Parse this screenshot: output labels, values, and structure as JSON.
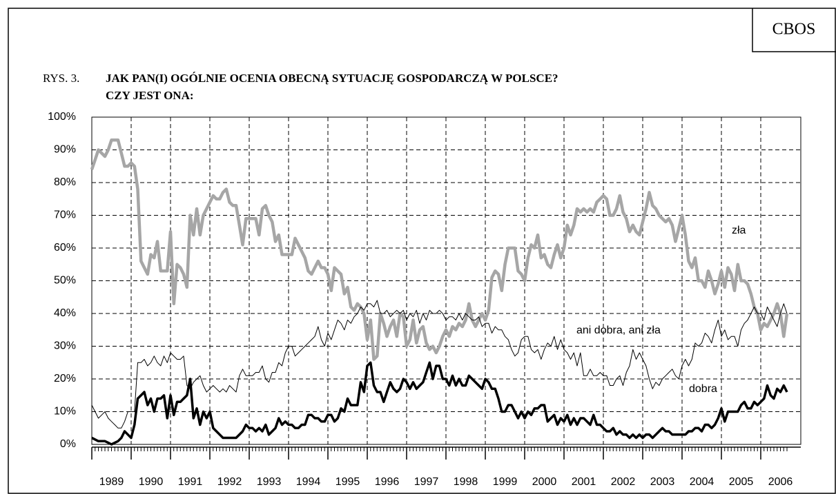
{
  "chart_data": {
    "type": "line",
    "source": "CBOS",
    "figure_label": "RYS. 3.",
    "title": "JAK PAN(I) OGÓLNIE OCENIA OBECNĄ SYTUACJĘ GOSPODARCZĄ W POLSCE?",
    "subtitle": "CZY JEST ONA:",
    "categories": [
      "1989",
      null,
      null,
      null,
      null,
      null,
      null,
      null,
      null,
      null,
      null,
      null,
      "1990",
      null,
      null,
      null,
      null,
      null,
      null,
      null,
      null,
      null,
      null,
      null,
      "1991",
      null,
      null,
      null,
      null,
      null,
      null,
      null,
      null,
      null,
      null,
      null,
      "1992",
      null,
      null,
      null,
      null,
      null,
      null,
      null,
      null,
      null,
      null,
      null,
      "1993",
      null,
      null,
      null,
      null,
      null,
      null,
      null,
      null,
      null,
      null,
      null,
      "1994",
      null,
      null,
      null,
      null,
      null,
      null,
      null,
      null,
      null,
      null,
      null,
      "1995",
      null,
      null,
      null,
      null,
      null,
      null,
      null,
      null,
      null,
      null,
      null,
      "1996",
      null,
      null,
      null,
      null,
      null,
      null,
      null,
      null,
      null,
      null,
      null,
      "1997",
      null,
      null,
      null,
      null,
      null,
      null,
      null,
      null,
      null,
      null,
      null,
      "1998",
      null,
      null,
      null,
      null,
      null,
      null,
      null,
      null,
      null,
      null,
      null,
      "1999",
      null,
      null,
      null,
      null,
      null,
      null,
      null,
      null,
      null,
      null,
      null,
      "2000",
      null,
      null,
      null,
      null,
      null,
      null,
      null,
      null,
      null,
      null,
      null,
      "2001",
      null,
      null,
      null,
      null,
      null,
      null,
      null,
      null,
      null,
      null,
      null,
      "2002",
      null,
      null,
      null,
      null,
      null,
      null,
      null,
      null,
      null,
      null,
      null,
      "2003",
      null,
      null,
      null,
      null,
      null,
      null,
      null,
      null,
      null,
      null,
      null,
      "2004",
      null,
      null,
      null,
      null,
      null,
      null,
      null,
      null,
      null,
      null,
      null,
      "2005",
      null,
      null,
      null,
      null,
      null,
      null,
      null,
      null,
      null,
      null,
      null,
      "2006",
      null,
      null,
      null,
      null,
      null,
      null,
      null,
      null
    ],
    "series": [
      {
        "name": "zła",
        "color": "#a6a6a6",
        "values": [
          84,
          87,
          90,
          89,
          88,
          90,
          93,
          93,
          93,
          89,
          85,
          85,
          86,
          85,
          78,
          56,
          54,
          52,
          58,
          57,
          62,
          53,
          53,
          53,
          65,
          43,
          55,
          54,
          52,
          48,
          70,
          64,
          72,
          64,
          70,
          72,
          74,
          76,
          75,
          75,
          77,
          78,
          74,
          73,
          73,
          67,
          61,
          69,
          69,
          69,
          69,
          64,
          72,
          73,
          70,
          68,
          62,
          64,
          58,
          58,
          58,
          58,
          63,
          61,
          59,
          57,
          53,
          52,
          54,
          56,
          54,
          54,
          52,
          47,
          54,
          53,
          52,
          46,
          48,
          42,
          41,
          43,
          42,
          40,
          32,
          38,
          26,
          27,
          40,
          37,
          33,
          36,
          38,
          33,
          40,
          39,
          30,
          32,
          38,
          31,
          35,
          36,
          31,
          29,
          30,
          28,
          30,
          33,
          35,
          33,
          36,
          35,
          37,
          36,
          38,
          43,
          38,
          36,
          38,
          40,
          38,
          41,
          51,
          53,
          52,
          47,
          55,
          60,
          60,
          60,
          53,
          52,
          50,
          57,
          61,
          60,
          64,
          57,
          58,
          55,
          54,
          58,
          61,
          57,
          60,
          67,
          64,
          67,
          72,
          71,
          72,
          71,
          72,
          71,
          74,
          75,
          76,
          75,
          70,
          70,
          72,
          76,
          71,
          69,
          65,
          67,
          65,
          64,
          68,
          72,
          77,
          73,
          72,
          70,
          69,
          68,
          69,
          67,
          62,
          66,
          70,
          64,
          56,
          54,
          57,
          50,
          50,
          48,
          53,
          50,
          46,
          49,
          53,
          48,
          54,
          52,
          47,
          55,
          50,
          50,
          49,
          46,
          42,
          40,
          35,
          37,
          36,
          38,
          40,
          43,
          40,
          33,
          40
        ]
      },
      {
        "name": "ani dobra, ani zła",
        "color": "#000000",
        "values": [
          12,
          10,
          8,
          9,
          10,
          8,
          7,
          6,
          5,
          5,
          7,
          10,
          10,
          10,
          25,
          25,
          26,
          24,
          25,
          27,
          25,
          24,
          27,
          25,
          28,
          27,
          26,
          26,
          27,
          18,
          17,
          19,
          20,
          21,
          18,
          16,
          17,
          18,
          17,
          16,
          17,
          16,
          18,
          17,
          16,
          21,
          23,
          21,
          21,
          21,
          22,
          22,
          24,
          20,
          19,
          22,
          22,
          25,
          24,
          28,
          30,
          30,
          27,
          28,
          29,
          30,
          31,
          32,
          33,
          36,
          32,
          30,
          34,
          32,
          35,
          38,
          37,
          35,
          38,
          37,
          39,
          40,
          42,
          41,
          43,
          43,
          42,
          44,
          40,
          40,
          41,
          39,
          40,
          41,
          40,
          41,
          38,
          40,
          39,
          41,
          37,
          40,
          38,
          41,
          40,
          40,
          41,
          40,
          38,
          39,
          39,
          38,
          40,
          38,
          40,
          39,
          38,
          38,
          39,
          36,
          37,
          37,
          34,
          36,
          35,
          35,
          33,
          32,
          29,
          27,
          28,
          32,
          33,
          33,
          29,
          28,
          29,
          26,
          29,
          31,
          30,
          33,
          29,
          32,
          29,
          28,
          26,
          28,
          24,
          28,
          21,
          21,
          23,
          21,
          21,
          22,
          21,
          21,
          18,
          18,
          20,
          21,
          18,
          22,
          24,
          29,
          26,
          28,
          26,
          24,
          20,
          17,
          19,
          18,
          20,
          21,
          22,
          23,
          21,
          20,
          24,
          26,
          24,
          26,
          31,
          30,
          31,
          34,
          33,
          31,
          35,
          38,
          33,
          35,
          32,
          33,
          33,
          30,
          35,
          37,
          38,
          40,
          42,
          40,
          40,
          38,
          42,
          40,
          38,
          36,
          40,
          43,
          40
        ]
      },
      {
        "name": "dobra",
        "color": "#000000",
        "values": [
          2,
          1.5,
          1,
          1,
          1,
          0.5,
          0,
          0.5,
          1,
          2,
          4,
          3,
          2,
          6,
          14,
          15,
          16,
          12,
          14,
          10,
          14,
          14,
          15,
          8,
          15,
          9,
          13,
          13,
          14,
          15,
          20,
          8,
          11,
          6,
          10,
          8,
          10,
          5,
          4,
          3,
          2,
          2,
          2,
          2,
          2,
          3,
          4,
          6,
          5,
          5,
          4,
          5,
          4,
          6,
          3,
          4,
          5,
          8,
          6,
          7,
          6,
          6,
          5,
          5,
          6,
          6,
          9,
          9,
          8,
          8,
          7,
          7,
          9,
          9,
          7,
          8,
          11,
          10,
          14,
          12,
          12,
          12,
          19,
          16,
          24,
          25,
          18,
          16,
          16,
          13,
          16,
          19,
          17,
          16,
          17,
          20,
          19,
          17,
          19,
          17,
          18,
          19,
          22,
          25,
          20,
          24,
          24,
          20,
          20,
          18,
          21,
          18,
          20,
          18,
          18,
          21,
          20,
          19,
          18,
          17,
          20,
          19,
          17,
          17,
          14,
          10,
          10,
          12,
          12,
          10,
          8,
          10,
          8,
          10,
          9,
          11,
          11,
          12,
          12,
          7,
          8,
          9,
          6,
          8,
          7,
          9,
          6,
          8,
          6,
          8,
          8,
          7,
          6,
          9,
          6,
          6,
          5,
          4,
          4,
          5,
          3,
          4,
          3,
          3,
          2,
          3,
          2,
          3,
          2,
          3,
          3,
          2,
          3,
          4,
          5,
          4,
          4,
          3,
          3,
          3,
          3,
          3,
          4,
          4,
          5,
          5,
          4,
          6,
          6,
          5,
          6,
          8,
          11,
          7,
          10,
          10,
          10,
          10,
          12,
          13,
          11,
          11,
          13,
          12,
          13,
          14,
          18,
          15,
          14,
          17,
          16,
          18,
          16
        ]
      }
    ],
    "ylim": [
      0,
      100
    ],
    "yticks": [
      {
        "value": 0,
        "label": "0%"
      },
      {
        "value": 10,
        "label": "10%"
      },
      {
        "value": 20,
        "label": "20%"
      },
      {
        "value": 30,
        "label": "30%"
      },
      {
        "value": 40,
        "label": "40%"
      },
      {
        "value": 50,
        "label": "50%"
      },
      {
        "value": 60,
        "label": "60%"
      },
      {
        "value": 70,
        "label": "70%"
      },
      {
        "value": 80,
        "label": "80%"
      },
      {
        "value": 90,
        "label": "90%"
      },
      {
        "value": 100,
        "label": "100%"
      }
    ],
    "grid": true
  }
}
